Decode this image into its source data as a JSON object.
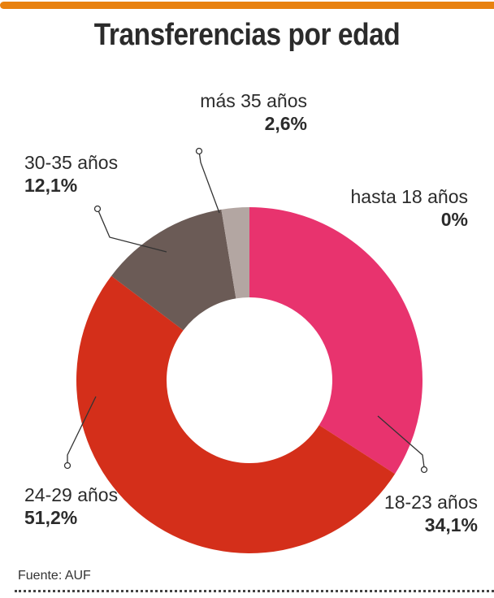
{
  "title": "Transferencias por edad",
  "source": "Fuente:  AUF",
  "chart_data": {
    "type": "pie",
    "subtype": "donut",
    "title": "Transferencias por edad",
    "slices": [
      {
        "label": "hasta 18 años",
        "value": 0,
        "value_label": "0%",
        "color": "#e8336e"
      },
      {
        "label": "18-23 años",
        "value": 34.1,
        "value_label": "34,1%",
        "color": "#e8336e"
      },
      {
        "label": "24-29 años",
        "value": 51.2,
        "value_label": "51,2%",
        "color": "#d42f1a"
      },
      {
        "label": "30-35 años",
        "value": 12.1,
        "value_label": "12,1%",
        "color": "#6b5b56"
      },
      {
        "label": "más 35 años",
        "value": 2.6,
        "value_label": "2,6%",
        "color": "#b3a6a2"
      }
    ]
  }
}
